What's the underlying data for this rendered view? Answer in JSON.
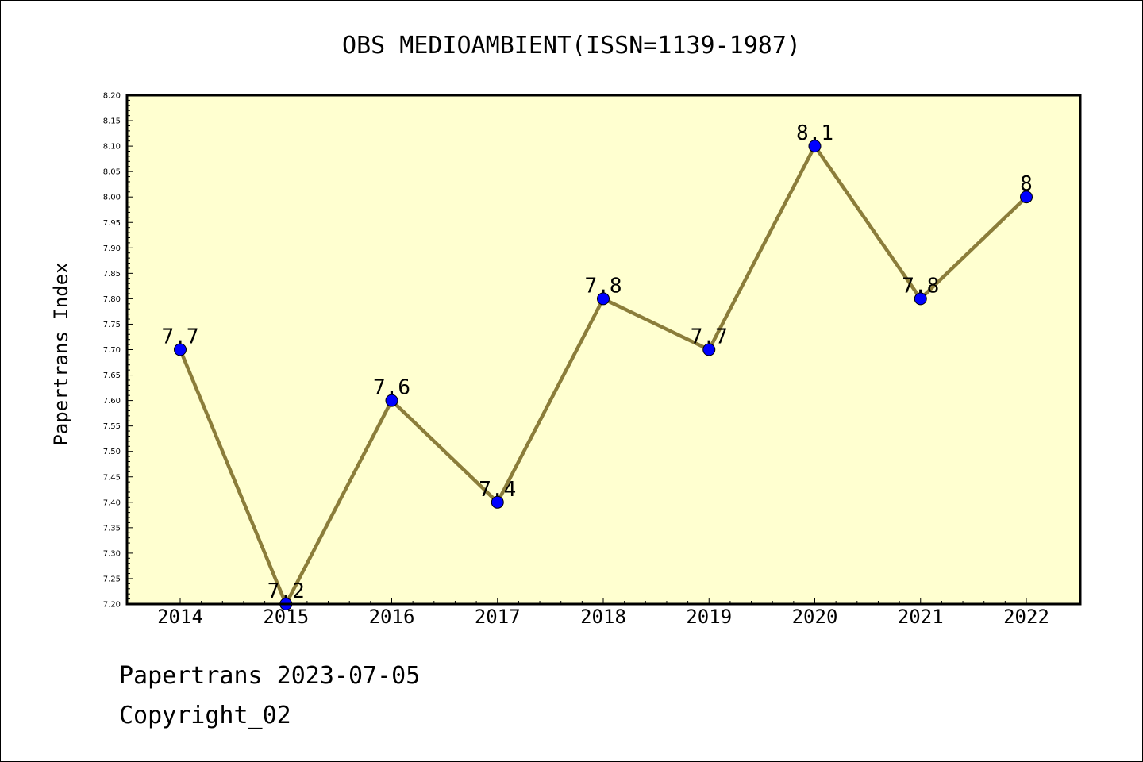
{
  "chart_data": {
    "type": "line",
    "title": "OBS MEDIOAMBIENT(ISSN=1139-1987)",
    "xlabel": "",
    "ylabel": "Papertrans Index",
    "categories": [
      "2014",
      "2015",
      "2016",
      "2017",
      "2018",
      "2019",
      "2020",
      "2021",
      "2022"
    ],
    "series": [
      {
        "values": [
          7.7,
          7.2,
          7.6,
          7.4,
          7.8,
          7.7,
          8.1,
          7.8,
          8.0
        ],
        "data_labels": [
          "7.7",
          "7.2",
          "7.6",
          "7.4",
          "7.8",
          "7.7",
          "8.1",
          "7.8",
          "8"
        ]
      }
    ],
    "ylim": [
      7.2,
      8.2
    ],
    "ytick_step": 0.05,
    "grid": false,
    "colors": {
      "plot_background": "#ffffd0",
      "line": "#8b7d3a",
      "marker": "#0000ff"
    }
  },
  "footer": {
    "line1": "Papertrans 2023-07-05",
    "line2": "Copyright_02"
  }
}
